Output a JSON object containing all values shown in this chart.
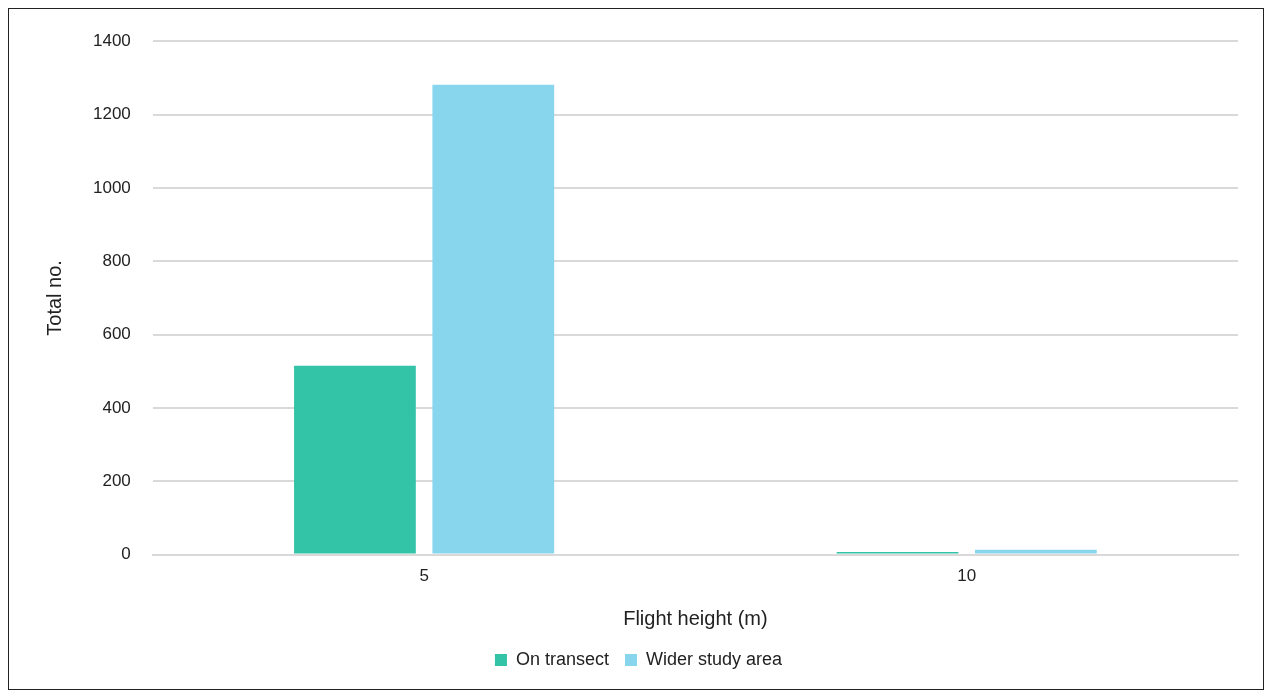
{
  "chart_data": {
    "type": "bar",
    "xlabel": "Flight height (m)",
    "ylabel": "Total no.",
    "categories": [
      "5",
      "10"
    ],
    "series": [
      {
        "name": "On transect",
        "color": "#33c3a6",
        "values": [
          515,
          7
        ]
      },
      {
        "name": "Wider study area",
        "color": "#87d6ee",
        "values": [
          1281,
          13
        ]
      }
    ],
    "ylim": [
      0,
      1400
    ],
    "yticks": [
      0,
      200,
      400,
      600,
      800,
      1000,
      1200,
      1400
    ],
    "grid": "y",
    "legend": "bottom"
  }
}
